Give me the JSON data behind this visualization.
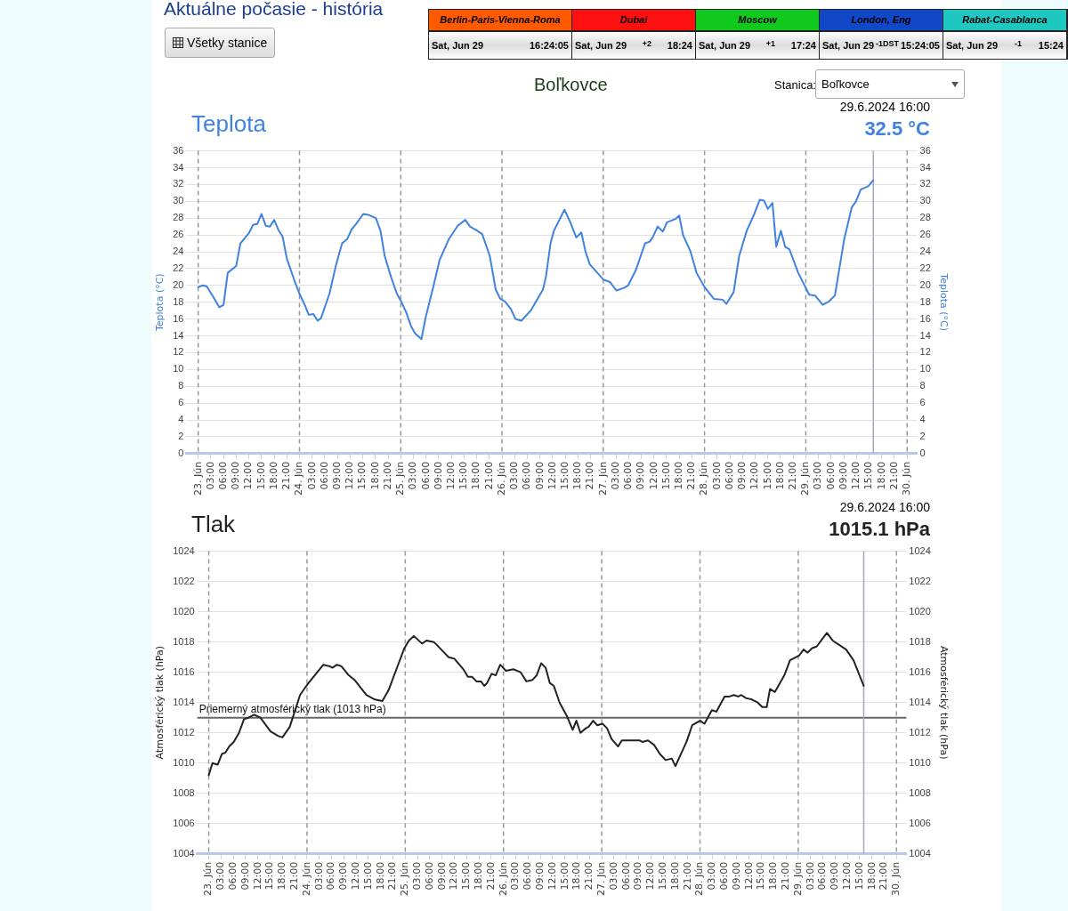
{
  "chart_data": [
    {
      "type": "other",
      "title": "Aktuálne počasie - história",
      "annotations": [
        "Všetky stanice",
        "Berlin-Paris-Vienna-Roma",
        "Sat, Jun 29",
        "16:24:05",
        "Dubai",
        "Sat, Jun 29",
        "+2",
        "18:24",
        "Moscow",
        "Sat, Jun 29",
        "+1",
        "17:24",
        "London, Eng",
        "Sat, Jun 29",
        "-1",
        "DST",
        "15:24:05",
        "Rabat-Casablanca",
        "Sat, Jun 29",
        "-1",
        "15:24",
        "Boľkovce",
        "Stanica:",
        "Boľkovce"
      ]
    },
    {
      "type": "line",
      "title": "Teplota",
      "annotations": [
        "29.6.2024 16:00",
        "32.5 °C"
      ],
      "ylabel": "Teplota (°C)",
      "y2label": "Teplota (°C)",
      "grid": "y",
      "xlim": [
        "2024-06-22T21:12",
        "2024-06-30T02:24"
      ],
      "ylim": [
        0,
        36
      ],
      "yticks": [
        0,
        2,
        4,
        6,
        8,
        10,
        12,
        14,
        16,
        18,
        20,
        22,
        24,
        26,
        28,
        30,
        32,
        34,
        36
      ],
      "y2lim": [
        0,
        36
      ],
      "y2ticks": [
        0,
        2,
        4,
        6,
        8,
        10,
        12,
        14,
        16,
        18,
        20,
        22,
        24,
        26,
        28,
        30,
        32,
        34,
        36
      ],
      "xticks": [
        {
          "value": "2024-06-23T00:00",
          "label": "23. Jún"
        },
        {
          "value": "2024-06-23T03:00",
          "label": "03:00"
        },
        {
          "value": "2024-06-23T06:00",
          "label": "06:00"
        },
        {
          "value": "2024-06-23T09:00",
          "label": "09:00"
        },
        {
          "value": "2024-06-23T12:00",
          "label": "12:00"
        },
        {
          "value": "2024-06-23T15:00",
          "label": "15:00"
        },
        {
          "value": "2024-06-23T18:00",
          "label": "18:00"
        },
        {
          "value": "2024-06-23T21:00",
          "label": "21:00"
        },
        {
          "value": "2024-06-24T00:00",
          "label": "24. Jún"
        },
        {
          "value": "2024-06-24T03:00",
          "label": "03:00"
        },
        {
          "value": "2024-06-24T06:00",
          "label": "06:00"
        },
        {
          "value": "2024-06-24T09:00",
          "label": "09:00"
        },
        {
          "value": "2024-06-24T12:00",
          "label": "12:00"
        },
        {
          "value": "2024-06-24T15:00",
          "label": "15:00"
        },
        {
          "value": "2024-06-24T18:00",
          "label": "18:00"
        },
        {
          "value": "2024-06-24T21:00",
          "label": "21:00"
        },
        {
          "value": "2024-06-25T00:00",
          "label": "25. Jún"
        },
        {
          "value": "2024-06-25T03:00",
          "label": "03:00"
        },
        {
          "value": "2024-06-25T06:00",
          "label": "06:00"
        },
        {
          "value": "2024-06-25T09:00",
          "label": "09:00"
        },
        {
          "value": "2024-06-25T12:00",
          "label": "12:00"
        },
        {
          "value": "2024-06-25T15:00",
          "label": "15:00"
        },
        {
          "value": "2024-06-25T18:00",
          "label": "18:00"
        },
        {
          "value": "2024-06-25T21:00",
          "label": "21:00"
        },
        {
          "value": "2024-06-26T00:00",
          "label": "26. Jún"
        },
        {
          "value": "2024-06-26T03:00",
          "label": "03:00"
        },
        {
          "value": "2024-06-26T06:00",
          "label": "06:00"
        },
        {
          "value": "2024-06-26T09:00",
          "label": "09:00"
        },
        {
          "value": "2024-06-26T12:00",
          "label": "12:00"
        },
        {
          "value": "2024-06-26T15:00",
          "label": "15:00"
        },
        {
          "value": "2024-06-26T18:00",
          "label": "18:00"
        },
        {
          "value": "2024-06-26T21:00",
          "label": "21:00"
        },
        {
          "value": "2024-06-27T00:00",
          "label": "27. Jún"
        },
        {
          "value": "2024-06-27T03:00",
          "label": "03:00"
        },
        {
          "value": "2024-06-27T06:00",
          "label": "06:00"
        },
        {
          "value": "2024-06-27T09:00",
          "label": "09:00"
        },
        {
          "value": "2024-06-27T12:00",
          "label": "12:00"
        },
        {
          "value": "2024-06-27T15:00",
          "label": "15:00"
        },
        {
          "value": "2024-06-27T18:00",
          "label": "18:00"
        },
        {
          "value": "2024-06-27T21:00",
          "label": "21:00"
        },
        {
          "value": "2024-06-28T00:00",
          "label": "28. Jún"
        },
        {
          "value": "2024-06-28T03:00",
          "label": "03:00"
        },
        {
          "value": "2024-06-28T06:00",
          "label": "06:00"
        },
        {
          "value": "2024-06-28T09:00",
          "label": "09:00"
        },
        {
          "value": "2024-06-28T12:00",
          "label": "12:00"
        },
        {
          "value": "2024-06-28T15:00",
          "label": "15:00"
        },
        {
          "value": "2024-06-28T18:00",
          "label": "18:00"
        },
        {
          "value": "2024-06-28T21:00",
          "label": "21:00"
        },
        {
          "value": "2024-06-29T00:00",
          "label": "29. Jún"
        },
        {
          "value": "2024-06-29T03:00",
          "label": "03:00"
        },
        {
          "value": "2024-06-29T06:00",
          "label": "06:00"
        },
        {
          "value": "2024-06-29T09:00",
          "label": "09:00"
        },
        {
          "value": "2024-06-29T12:00",
          "label": "12:00"
        },
        {
          "value": "2024-06-29T15:00",
          "label": "15:00"
        },
        {
          "value": "2024-06-29T18:00",
          "label": "18:00"
        },
        {
          "value": "2024-06-29T21:00",
          "label": "21:00"
        },
        {
          "value": "2024-06-30T00:00",
          "label": "30. Jún"
        }
      ],
      "ref_lines": [
        {
          "axis": "x",
          "value": "2024-06-23T00:00",
          "line_style": "dashed",
          "color": "#9a9a9a"
        },
        {
          "axis": "x",
          "value": "2024-06-24T00:00",
          "line_style": "dashed",
          "color": "#9a9a9a"
        },
        {
          "axis": "x",
          "value": "2024-06-25T00:00",
          "line_style": "dashed",
          "color": "#9a9a9a"
        },
        {
          "axis": "x",
          "value": "2024-06-26T00:00",
          "line_style": "dashed",
          "color": "#9a9a9a"
        },
        {
          "axis": "x",
          "value": "2024-06-27T00:00",
          "line_style": "dashed",
          "color": "#9a9a9a"
        },
        {
          "axis": "x",
          "value": "2024-06-28T00:00",
          "line_style": "dashed",
          "color": "#9a9a9a"
        },
        {
          "axis": "x",
          "value": "2024-06-29T00:00",
          "line_style": "dashed",
          "color": "#9a9a9a"
        },
        {
          "axis": "x",
          "value": "2024-06-30T00:00",
          "line_style": "dashed",
          "color": "#9a9a9a"
        },
        {
          "axis": "x",
          "value": "2024-06-29T16:00",
          "line_style": "solid",
          "color": "#a4aac0"
        }
      ],
      "series": [
        {
          "color": "#3f82e0",
          "x": [
            "2024-06-23T00:00",
            "2024-06-23T01:00",
            "2024-06-23T02:00",
            "2024-06-23T03:36",
            "2024-06-23T05:00",
            "2024-06-23T06:00",
            "2024-06-23T07:00",
            "2024-06-23T09:00",
            "2024-06-23T10:00",
            "2024-06-23T12:00",
            "2024-06-23T13:00",
            "2024-06-23T14:00",
            "2024-06-23T15:00",
            "2024-06-23T16:00",
            "2024-06-23T17:00",
            "2024-06-23T18:00",
            "2024-06-23T19:00",
            "2024-06-23T20:00",
            "2024-06-23T21:00",
            "2024-06-23T23:00",
            "2024-06-24T00:00",
            "2024-06-24T01:24",
            "2024-06-24T02:12",
            "2024-06-24T03:18",
            "2024-06-24T04:18",
            "2024-06-24T05:06",
            "2024-06-24T07:06",
            "2024-06-24T08:42",
            "2024-06-24T10:06",
            "2024-06-24T11:18",
            "2024-06-24T12:24",
            "2024-06-24T13:24",
            "2024-06-24T15:06",
            "2024-06-24T16:18",
            "2024-06-24T18:06",
            "2024-06-24T19:12",
            "2024-06-24T20:12",
            "2024-06-24T21:42",
            "2024-06-24T23:06",
            "2024-06-25T00:12",
            "2024-06-25T01:18",
            "2024-06-25T02:24",
            "2024-06-25T03:24",
            "2024-06-25T04:54",
            "2024-06-25T05:54",
            "2024-06-25T07:48",
            "2024-06-25T09:12",
            "2024-06-25T11:24",
            "2024-06-25T13:30",
            "2024-06-25T15:18",
            "2024-06-25T16:24",
            "2024-06-25T17:48",
            "2024-06-25T19:18",
            "2024-06-25T21:06",
            "2024-06-25T22:30",
            "2024-06-25T23:36",
            "2024-06-26T00:42",
            "2024-06-26T02:06",
            "2024-06-26T03:12",
            "2024-06-26T04:36",
            "2024-06-26T06:48",
            "2024-06-26T09:42",
            "2024-06-26T10:24",
            "2024-06-26T11:30",
            "2024-06-26T12:18",
            "2024-06-26T14:48",
            "2024-06-26T16:12",
            "2024-06-26T17:36",
            "2024-06-26T18:48",
            "2024-06-26T19:48",
            "2024-06-26T20:48",
            "2024-06-26T22:36",
            "2024-06-27T00:00",
            "2024-06-27T01:36",
            "2024-06-27T03:06",
            "2024-06-27T04:54",
            "2024-06-27T05:54",
            "2024-06-27T07:42",
            "2024-06-27T09:54",
            "2024-06-27T11:00",
            "2024-06-27T11:42",
            "2024-06-27T12:54",
            "2024-06-27T14:06",
            "2024-06-27T15:06",
            "2024-06-27T17:06",
            "2024-06-27T18:00",
            "2024-06-27T18:54",
            "2024-06-27T20:42",
            "2024-06-27T22:06",
            "2024-06-28T00:00",
            "2024-06-28T02:12",
            "2024-06-28T04:18",
            "2024-06-28T05:12",
            "2024-06-28T06:54",
            "2024-06-28T08:12",
            "2024-06-28T10:00",
            "2024-06-28T11:48",
            "2024-06-28T13:06",
            "2024-06-28T14:06",
            "2024-06-28T15:00",
            "2024-06-28T16:06",
            "2024-06-28T17:00",
            "2024-06-28T18:06",
            "2024-06-28T19:06",
            "2024-06-28T20:06",
            "2024-06-28T22:12",
            "2024-06-29T00:48",
            "2024-06-29T02:12",
            "2024-06-29T04:00",
            "2024-06-29T05:30",
            "2024-06-29T06:54",
            "2024-06-29T09:06",
            "2024-06-29T10:54",
            "2024-06-29T11:54",
            "2024-06-29T13:00",
            "2024-06-29T14:48",
            "2024-06-29T16:00"
          ],
          "values": [
            19.8,
            20,
            19.9,
            18.6,
            17.4,
            17.7,
            21.5,
            22.3,
            25,
            26.2,
            27.2,
            27.3,
            28.5,
            27.1,
            27,
            27.8,
            26.6,
            25.8,
            23.2,
            20.3,
            19,
            17.5,
            16.5,
            16.6,
            15.8,
            16.1,
            19,
            22.5,
            25,
            25.5,
            26.7,
            27.3,
            28.5,
            28.4,
            28,
            26.5,
            23.5,
            21,
            19,
            18,
            16.8,
            15.2,
            14.3,
            13.6,
            16.2,
            20,
            23,
            25.5,
            27.1,
            27.8,
            27,
            26.6,
            26.1,
            23.5,
            19.5,
            18.4,
            18.1,
            17.2,
            16,
            15.8,
            17,
            19.5,
            21,
            25,
            26.5,
            29,
            27.5,
            25.7,
            26.3,
            24,
            22.5,
            21.5,
            20.7,
            20.4,
            19.4,
            19.7,
            20,
            21.8,
            25,
            25.2,
            25.7,
            27,
            26.4,
            27.5,
            27.9,
            28.3,
            26,
            24,
            21.5,
            19.8,
            18.4,
            18.3,
            17.8,
            19.2,
            23.5,
            26.5,
            28.5,
            30.2,
            30.1,
            29.1,
            29.8,
            24.6,
            26.5,
            24.6,
            24.3,
            21.5,
            18.9,
            18.8,
            17.7,
            18.1,
            18.8,
            25.5,
            29.3,
            30,
            31.4,
            31.8,
            32.5
          ]
        }
      ]
    },
    {
      "type": "line",
      "title": "Tlak",
      "annotations": [
        "29.6.2024 16:00",
        "1015.1 hPa"
      ],
      "ylabel": "Atmosférický tlak (hPa)",
      "y2label": "Atmosférický tlak (hPa)",
      "grid": "y",
      "xlim": [
        "2024-06-22T21:12",
        "2024-06-30T02:24"
      ],
      "ylim": [
        1004,
        1024
      ],
      "yticks": [
        1004,
        1006,
        1008,
        1010,
        1012,
        1014,
        1016,
        1018,
        1020,
        1022,
        1024
      ],
      "y2lim": [
        1004,
        1024
      ],
      "y2ticks": [
        1004,
        1006,
        1008,
        1010,
        1012,
        1014,
        1016,
        1018,
        1020,
        1022,
        1024
      ],
      "xticks": [
        {
          "value": "2024-06-23T00:00",
          "label": "23. Jún"
        },
        {
          "value": "2024-06-23T03:00",
          "label": "03:00"
        },
        {
          "value": "2024-06-23T06:00",
          "label": "06:00"
        },
        {
          "value": "2024-06-23T09:00",
          "label": "09:00"
        },
        {
          "value": "2024-06-23T12:00",
          "label": "12:00"
        },
        {
          "value": "2024-06-23T15:00",
          "label": "15:00"
        },
        {
          "value": "2024-06-23T18:00",
          "label": "18:00"
        },
        {
          "value": "2024-06-23T21:00",
          "label": "21:00"
        },
        {
          "value": "2024-06-24T00:00",
          "label": "24. Jún"
        },
        {
          "value": "2024-06-24T03:00",
          "label": "03:00"
        },
        {
          "value": "2024-06-24T06:00",
          "label": "06:00"
        },
        {
          "value": "2024-06-24T09:00",
          "label": "09:00"
        },
        {
          "value": "2024-06-24T12:00",
          "label": "12:00"
        },
        {
          "value": "2024-06-24T15:00",
          "label": "15:00"
        },
        {
          "value": "2024-06-24T18:00",
          "label": "18:00"
        },
        {
          "value": "2024-06-24T21:00",
          "label": "21:00"
        },
        {
          "value": "2024-06-25T00:00",
          "label": "25. Jún"
        },
        {
          "value": "2024-06-25T03:00",
          "label": "03:00"
        },
        {
          "value": "2024-06-25T06:00",
          "label": "06:00"
        },
        {
          "value": "2024-06-25T09:00",
          "label": "09:00"
        },
        {
          "value": "2024-06-25T12:00",
          "label": "12:00"
        },
        {
          "value": "2024-06-25T15:00",
          "label": "15:00"
        },
        {
          "value": "2024-06-25T18:00",
          "label": "18:00"
        },
        {
          "value": "2024-06-25T21:00",
          "label": "21:00"
        },
        {
          "value": "2024-06-26T00:00",
          "label": "26. Jún"
        },
        {
          "value": "2024-06-26T03:00",
          "label": "03:00"
        },
        {
          "value": "2024-06-26T06:00",
          "label": "06:00"
        },
        {
          "value": "2024-06-26T09:00",
          "label": "09:00"
        },
        {
          "value": "2024-06-26T12:00",
          "label": "12:00"
        },
        {
          "value": "2024-06-26T15:00",
          "label": "15:00"
        },
        {
          "value": "2024-06-26T18:00",
          "label": "18:00"
        },
        {
          "value": "2024-06-26T21:00",
          "label": "21:00"
        },
        {
          "value": "2024-06-27T00:00",
          "label": "27. Jún"
        },
        {
          "value": "2024-06-27T03:00",
          "label": "03:00"
        },
        {
          "value": "2024-06-27T06:00",
          "label": "06:00"
        },
        {
          "value": "2024-06-27T09:00",
          "label": "09:00"
        },
        {
          "value": "2024-06-27T12:00",
          "label": "12:00"
        },
        {
          "value": "2024-06-27T15:00",
          "label": "15:00"
        },
        {
          "value": "2024-06-27T18:00",
          "label": "18:00"
        },
        {
          "value": "2024-06-27T21:00",
          "label": "21:00"
        },
        {
          "value": "2024-06-28T00:00",
          "label": "28. Jún"
        },
        {
          "value": "2024-06-28T03:00",
          "label": "03:00"
        },
        {
          "value": "2024-06-28T06:00",
          "label": "06:00"
        },
        {
          "value": "2024-06-28T09:00",
          "label": "09:00"
        },
        {
          "value": "2024-06-28T12:00",
          "label": "12:00"
        },
        {
          "value": "2024-06-28T15:00",
          "label": "15:00"
        },
        {
          "value": "2024-06-28T18:00",
          "label": "18:00"
        },
        {
          "value": "2024-06-28T21:00",
          "label": "21:00"
        },
        {
          "value": "2024-06-29T00:00",
          "label": "29. Jún"
        },
        {
          "value": "2024-06-29T03:00",
          "label": "03:00"
        },
        {
          "value": "2024-06-29T06:00",
          "label": "06:00"
        },
        {
          "value": "2024-06-29T09:00",
          "label": "09:00"
        },
        {
          "value": "2024-06-29T12:00",
          "label": "12:00"
        },
        {
          "value": "2024-06-29T15:00",
          "label": "15:00"
        },
        {
          "value": "2024-06-29T18:00",
          "label": "18:00"
        },
        {
          "value": "2024-06-29T21:00",
          "label": "21:00"
        },
        {
          "value": "2024-06-30T00:00",
          "label": "30. Jún"
        }
      ],
      "ref_lines": [
        {
          "axis": "y",
          "value": 1013,
          "label": "Priemerný atmosférický tlak (1013 hPa)",
          "color": "#666666",
          "line_style": "solid"
        },
        {
          "axis": "x",
          "value": "2024-06-23T00:00",
          "line_style": "dashed",
          "color": "#9a9a9a"
        },
        {
          "axis": "x",
          "value": "2024-06-24T00:00",
          "line_style": "dashed",
          "color": "#9a9a9a"
        },
        {
          "axis": "x",
          "value": "2024-06-25T00:00",
          "line_style": "dashed",
          "color": "#9a9a9a"
        },
        {
          "axis": "x",
          "value": "2024-06-26T00:00",
          "line_style": "dashed",
          "color": "#9a9a9a"
        },
        {
          "axis": "x",
          "value": "2024-06-27T00:00",
          "line_style": "dashed",
          "color": "#9a9a9a"
        },
        {
          "axis": "x",
          "value": "2024-06-28T00:00",
          "line_style": "dashed",
          "color": "#9a9a9a"
        },
        {
          "axis": "x",
          "value": "2024-06-29T00:00",
          "line_style": "dashed",
          "color": "#9a9a9a"
        },
        {
          "axis": "x",
          "value": "2024-06-30T00:00",
          "line_style": "dashed",
          "color": "#9a9a9a"
        },
        {
          "axis": "x",
          "value": "2024-06-29T16:00",
          "line_style": "solid",
          "color": "#a4aac0"
        }
      ],
      "series": [
        {
          "color": "#222222",
          "x": [
            "2024-06-23T00:00",
            "2024-06-23T00:54",
            "2024-06-23T02:12",
            "2024-06-23T03:12",
            "2024-06-23T04:06",
            "2024-06-23T05:00",
            "2024-06-23T06:06",
            "2024-06-23T07:24",
            "2024-06-23T08:36",
            "2024-06-23T09:42",
            "2024-06-23T11:06",
            "2024-06-23T12:36",
            "2024-06-23T15:06",
            "2024-06-23T16:54",
            "2024-06-23T18:00",
            "2024-06-23T19:48",
            "2024-06-23T22:18",
            "2024-06-24T00:06",
            "2024-06-24T02:12",
            "2024-06-24T04:00",
            "2024-06-24T05:30",
            "2024-06-24T06:12",
            "2024-06-24T07:18",
            "2024-06-24T08:24",
            "2024-06-24T10:12",
            "2024-06-24T11:36",
            "2024-06-24T14:30",
            "2024-06-24T16:36",
            "2024-06-24T18:24",
            "2024-06-24T19:54",
            "2024-06-24T21:42",
            "2024-06-24T23:48",
            "2024-06-25T00:54",
            "2024-06-25T02:06",
            "2024-06-25T04:06",
            "2024-06-25T05:12",
            "2024-06-25T07:00",
            "2024-06-25T08:48",
            "2024-06-25T10:36",
            "2024-06-25T12:00",
            "2024-06-25T14:12",
            "2024-06-25T15:18",
            "2024-06-25T16:18",
            "2024-06-25T17:24",
            "2024-06-25T18:30",
            "2024-06-25T19:18",
            "2024-06-25T20:00",
            "2024-06-25T21:06",
            "2024-06-25T22:06",
            "2024-06-25T23:12",
            "2024-06-26T00:36",
            "2024-06-26T02:24",
            "2024-06-26T04:12",
            "2024-06-26T05:36",
            "2024-06-26T07:06",
            "2024-06-26T08:06",
            "2024-06-26T09:12",
            "2024-06-26T10:18",
            "2024-06-26T11:18",
            "2024-06-26T12:18",
            "2024-06-26T13:42",
            "2024-06-26T15:30",
            "2024-06-26T16:54",
            "2024-06-26T17:48",
            "2024-06-26T18:48",
            "2024-06-26T20:06",
            "2024-06-26T20:48",
            "2024-06-26T21:54",
            "2024-06-26T22:54",
            "2024-06-27T00:12",
            "2024-06-27T01:18",
            "2024-06-27T02:24",
            "2024-06-27T04:00",
            "2024-06-27T04:54",
            "2024-06-27T09:12",
            "2024-06-27T09:54",
            "2024-06-27T11:18",
            "2024-06-27T12:48",
            "2024-06-27T14:12",
            "2024-06-27T15:36",
            "2024-06-27T17:06",
            "2024-06-27T18:00",
            "2024-06-27T20:42",
            "2024-06-27T22:06",
            "2024-06-28T00:00",
            "2024-06-28T01:06",
            "2024-06-28T02:54",
            "2024-06-28T04:00",
            "2024-06-28T06:00",
            "2024-06-28T07:12",
            "2024-06-28T08:18",
            "2024-06-28T09:18",
            "2024-06-28T10:06",
            "2024-06-28T11:12",
            "2024-06-28T12:42",
            "2024-06-28T14:06",
            "2024-06-28T15:12",
            "2024-06-28T16:18",
            "2024-06-28T17:06",
            "2024-06-28T18:18",
            "2024-06-28T20:36",
            "2024-06-28T22:00",
            "2024-06-29T00:12",
            "2024-06-29T01:18",
            "2024-06-29T02:18",
            "2024-06-29T03:24",
            "2024-06-29T04:30",
            "2024-06-29T07:00",
            "2024-06-29T08:24",
            "2024-06-29T11:42",
            "2024-06-29T13:30",
            "2024-06-29T16:00"
          ],
          "values": [
            1009.2,
            1010,
            1009.9,
            1010.6,
            1010.7,
            1011.1,
            1011.4,
            1012,
            1012.9,
            1013,
            1013.2,
            1013,
            1012.1,
            1011.8,
            1011.7,
            1012.4,
            1014.5,
            1015.2,
            1015.9,
            1016.5,
            1016.4,
            1016.3,
            1016.5,
            1016.4,
            1015.8,
            1015.5,
            1014.5,
            1014.2,
            1014.1,
            1014.8,
            1016.1,
            1017.6,
            1018.1,
            1018.4,
            1017.9,
            1018.1,
            1018,
            1017.5,
            1017,
            1016.9,
            1016.2,
            1015.7,
            1015.7,
            1015.4,
            1015.4,
            1015.1,
            1015.3,
            1015.9,
            1015.8,
            1016.5,
            1016.1,
            1016.2,
            1016,
            1015.4,
            1015.5,
            1015.8,
            1016.6,
            1016.3,
            1015.3,
            1015.1,
            1014,
            1013.1,
            1012.2,
            1012.8,
            1012,
            1012.3,
            1012.4,
            1012.8,
            1012.5,
            1012.6,
            1012.3,
            1011.6,
            1011.1,
            1011.5,
            1011.5,
            1011.4,
            1011.5,
            1011.2,
            1010.6,
            1010.2,
            1010.3,
            1009.8,
            1011.4,
            1012.5,
            1012.8,
            1012.6,
            1013.5,
            1013.4,
            1014.4,
            1014.4,
            1014.5,
            1014.4,
            1014.5,
            1014.3,
            1014.2,
            1014,
            1013.7,
            1013.7,
            1014.9,
            1014.7,
            1015.8,
            1016.8,
            1017.1,
            1017.5,
            1017.3,
            1017.6,
            1017.7,
            1018.6,
            1018.1,
            1017.5,
            1016.8,
            1015.1
          ]
        }
      ]
    }
  ]
}
